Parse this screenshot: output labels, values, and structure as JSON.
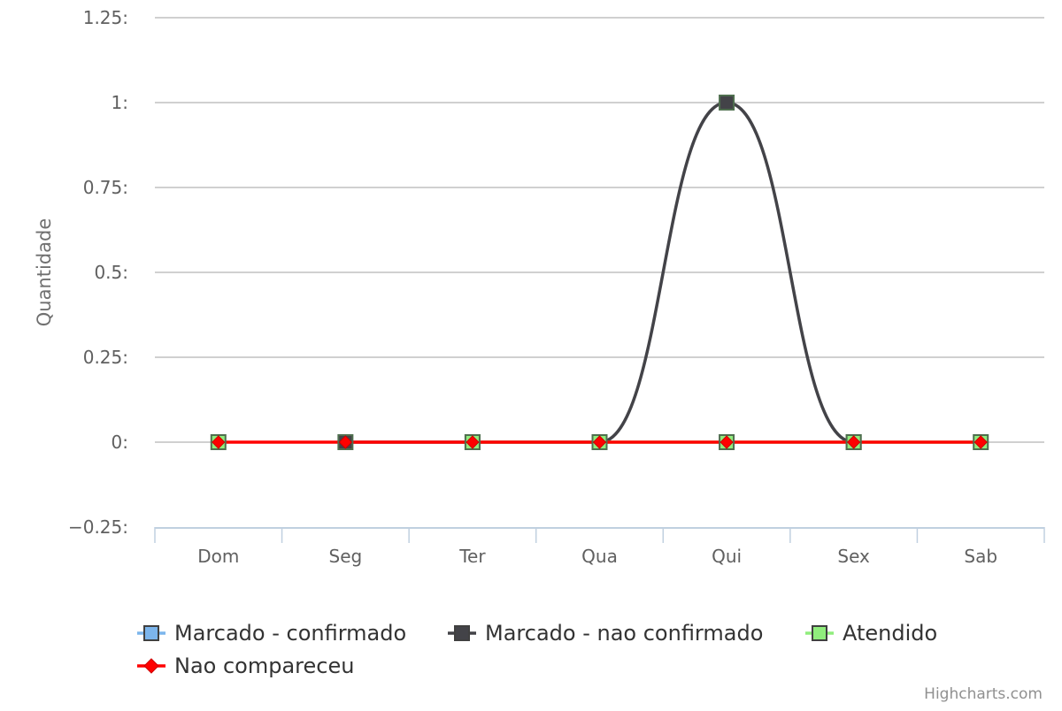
{
  "chart_data": {
    "type": "line",
    "title": "",
    "xlabel": "",
    "ylabel": "Quantidade",
    "categories": [
      "Dom",
      "Seg",
      "Ter",
      "Qua",
      "Qui",
      "Sex",
      "Sab"
    ],
    "y_ticks": [
      "1.25:",
      "1:",
      "0.75:",
      "0.5:",
      "0.25:",
      "0:",
      "−0.25:"
    ],
    "y_tick_values": [
      1.25,
      1,
      0.75,
      0.5,
      0.25,
      0,
      -0.25
    ],
    "ylim": [
      -0.25,
      1.25
    ],
    "grid": true,
    "legend_position": "bottom",
    "series": [
      {
        "name": "Marcado - confirmado",
        "color": "#7cb5ec",
        "marker": "square",
        "values": [
          null,
          null,
          null,
          null,
          null,
          null,
          null
        ]
      },
      {
        "name": "Marcado - nao confirmado",
        "color": "#434348",
        "marker": "square",
        "values": [
          null,
          0,
          0,
          0,
          1,
          0,
          null
        ]
      },
      {
        "name": "Atendido",
        "color": "#90ed7d",
        "marker": "square",
        "values": [
          0,
          null,
          0,
          0,
          0,
          0,
          0
        ]
      },
      {
        "name": "Nao compareceu",
        "color": "#ff0000",
        "marker": "diamond",
        "values": [
          0,
          0,
          0,
          0,
          0,
          0,
          0
        ]
      }
    ],
    "credits": "Highcharts.com"
  }
}
